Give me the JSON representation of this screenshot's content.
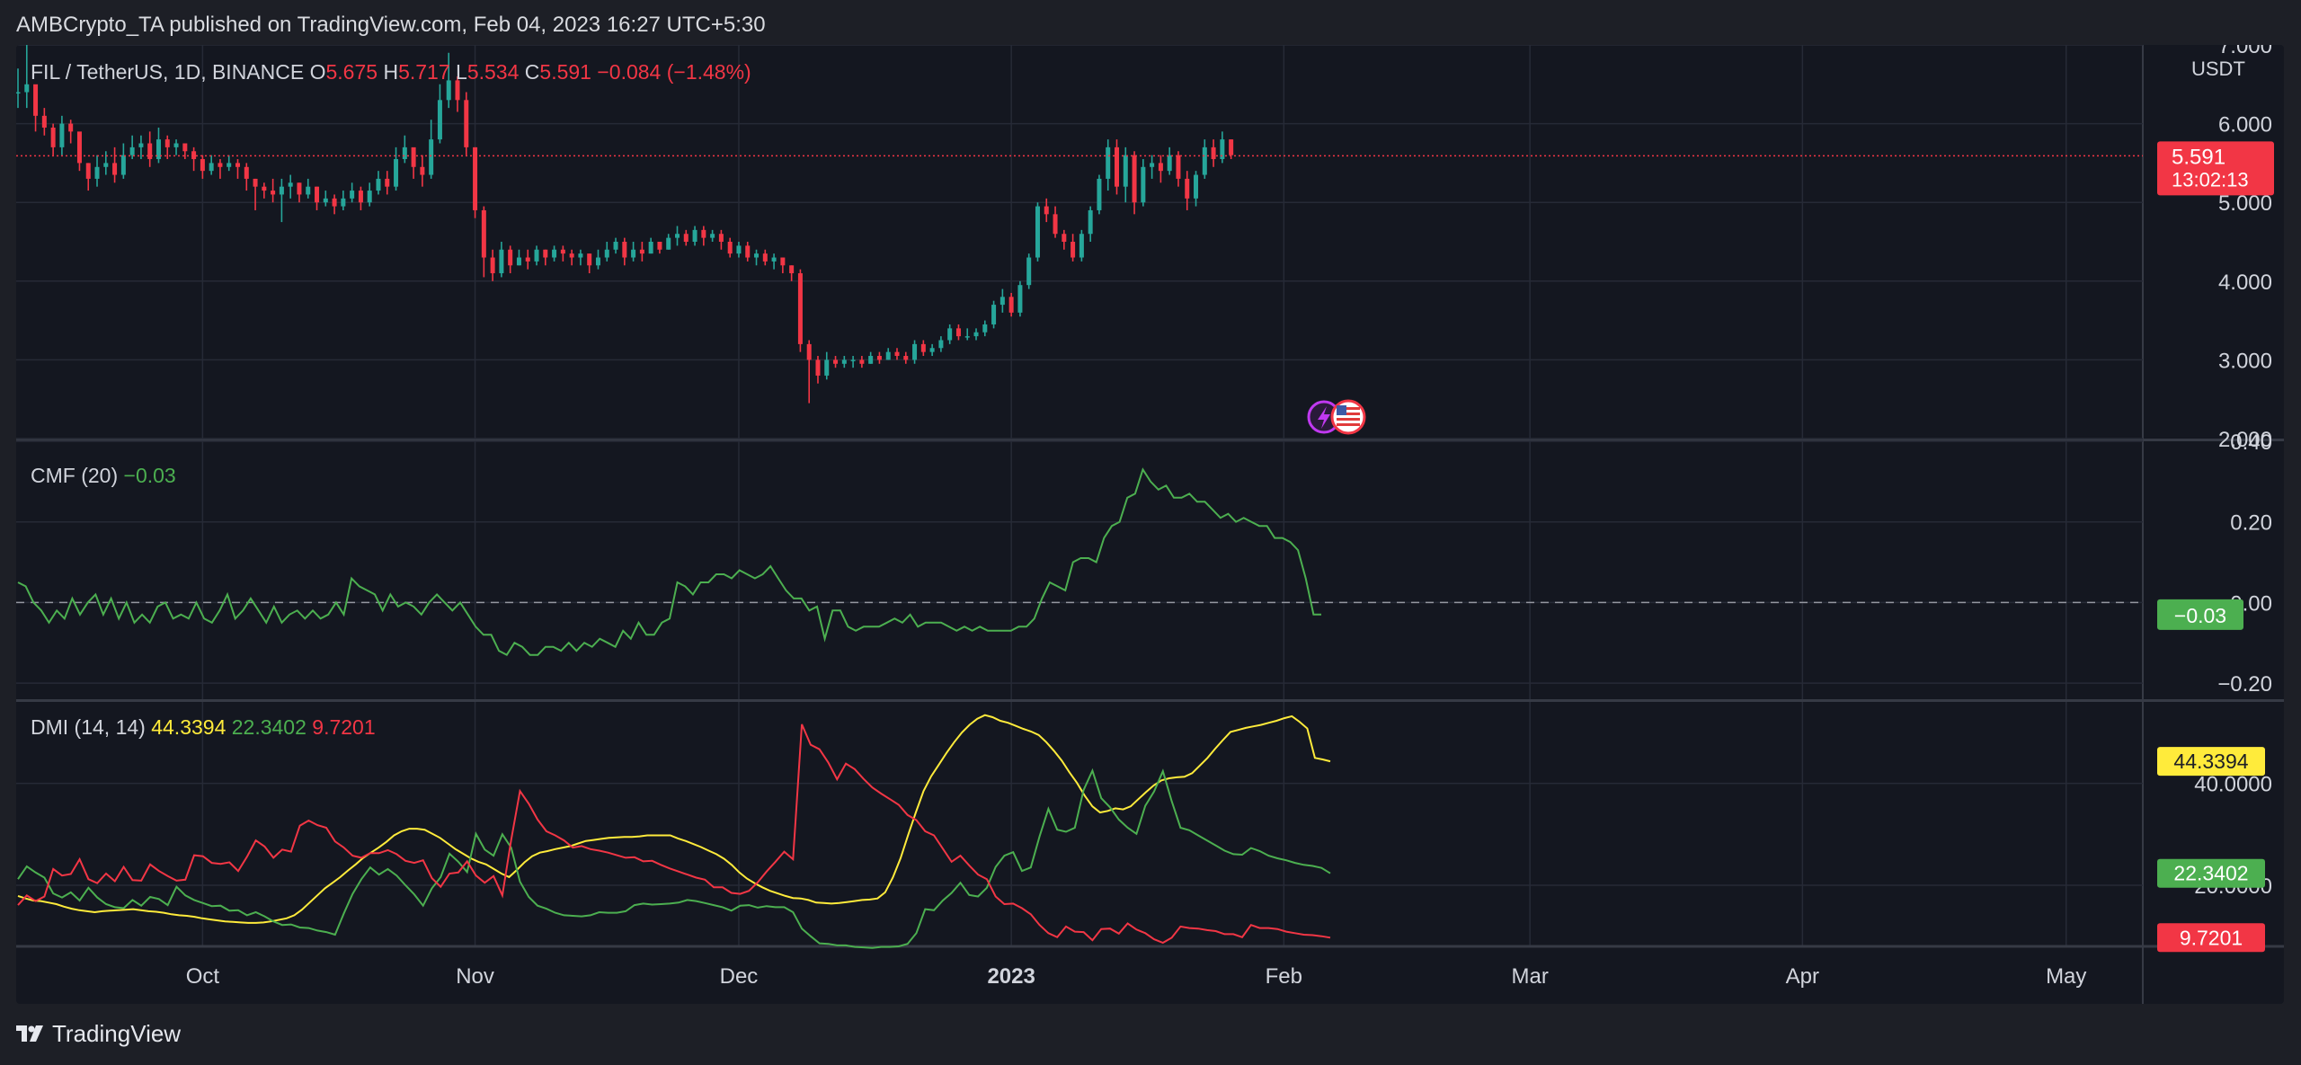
{
  "header": {
    "publisher": "AMBCrypto_TA published on TradingView.com, Feb 04, 2023 16:27 UTC+5:30"
  },
  "footer": {
    "brand": "TradingView"
  },
  "colors": {
    "up": "#26a69a",
    "down": "#f23645",
    "cmf": "#4caf50",
    "dmi_adx": "#ffeb3b",
    "dmi_plus": "#4caf50",
    "dmi_minus": "#f23645"
  },
  "chart_data": [
    {
      "type": "candlestick",
      "title": "FIL / TetherUS, 1D, BINANCE",
      "ohlc_label": {
        "o_key": "O",
        "o": "5.675",
        "h_key": "H",
        "h": "5.717",
        "l_key": "L",
        "l": "5.534",
        "c_key": "C",
        "c": "5.591",
        "change": "−0.084 (−1.48%)"
      },
      "unit": "USDT",
      "ylim": [
        2.0,
        7.0
      ],
      "y_ticks": [
        "7.000",
        "6.000",
        "5.000",
        "4.000",
        "3.000",
        "2.000"
      ],
      "last_price": "5.591",
      "countdown": "13:02:13",
      "x_labels": [
        "Oct",
        "Nov",
        "Dec",
        "2023",
        "Feb",
        "Mar",
        "Apr",
        "May"
      ],
      "x_label_dates": [
        "2022-10-01",
        "2022-11-01",
        "2022-12-01",
        "2023-01-01",
        "2023-02-01",
        "2023-03-01",
        "2023-04-01",
        "2023-05-01"
      ],
      "x_start_date": "2022-09-10",
      "close": [
        6.4,
        6.5,
        6.1,
        5.95,
        5.7,
        6.0,
        5.9,
        5.5,
        5.3,
        5.45,
        5.5,
        5.35,
        5.6,
        5.7,
        5.75,
        5.55,
        5.8,
        5.7,
        5.75,
        5.65,
        5.55,
        5.4,
        5.5,
        5.45,
        5.5,
        5.45,
        5.3,
        5.2,
        5.15,
        5.1,
        5.2,
        5.25,
        5.1,
        5.2,
        5.0,
        5.05,
        4.95,
        5.05,
        5.15,
        5.0,
        5.15,
        5.3,
        5.2,
        5.55,
        5.7,
        5.45,
        5.35,
        5.8,
        6.3,
        6.55,
        6.3,
        5.7,
        4.9,
        4.3,
        4.1,
        4.4,
        4.2,
        4.3,
        4.25,
        4.4,
        4.3,
        4.4,
        4.35,
        4.3,
        4.35,
        4.2,
        4.3,
        4.4,
        4.5,
        4.3,
        4.4,
        4.35,
        4.5,
        4.4,
        4.55,
        4.6,
        4.5,
        4.65,
        4.55,
        4.6,
        4.5,
        4.35,
        4.45,
        4.3,
        4.35,
        4.25,
        4.3,
        4.2,
        4.1,
        3.2,
        3.0,
        2.8,
        3.0,
        2.95,
        3.0,
        3.0,
        2.95,
        3.05,
        3.0,
        3.1,
        3.05,
        3.0,
        3.2,
        3.1,
        3.15,
        3.25,
        3.4,
        3.3,
        3.3,
        3.35,
        3.45,
        3.7,
        3.8,
        3.6,
        3.95,
        4.3,
        4.95,
        4.85,
        4.6,
        4.5,
        4.3,
        4.6,
        4.9,
        5.3,
        5.7,
        5.2,
        5.6,
        5.0,
        5.45,
        5.5,
        5.4,
        5.6,
        5.3,
        5.05,
        5.35,
        5.7,
        5.55,
        5.8,
        5.6
      ],
      "high": [
        6.7,
        7.0,
        6.4,
        6.2,
        6.0,
        6.1,
        6.05,
        5.85,
        5.5,
        5.6,
        5.65,
        5.7,
        5.75,
        5.85,
        5.85,
        5.9,
        5.95,
        5.85,
        5.8,
        5.75,
        5.7,
        5.6,
        5.6,
        5.55,
        5.6,
        5.55,
        5.5,
        5.3,
        5.25,
        5.3,
        5.3,
        5.35,
        5.25,
        5.3,
        5.2,
        5.15,
        5.1,
        5.15,
        5.25,
        5.2,
        5.25,
        5.4,
        5.4,
        5.7,
        5.85,
        5.65,
        5.6,
        6.05,
        6.5,
        6.9,
        6.6,
        6.4,
        5.7,
        4.95,
        4.4,
        4.5,
        4.45,
        4.4,
        4.4,
        4.45,
        4.4,
        4.45,
        4.45,
        4.4,
        4.4,
        4.35,
        4.4,
        4.5,
        4.55,
        4.55,
        4.5,
        4.5,
        4.55,
        4.5,
        4.6,
        4.7,
        4.65,
        4.7,
        4.7,
        4.65,
        4.65,
        4.55,
        4.5,
        4.5,
        4.4,
        4.4,
        4.35,
        4.3,
        4.2,
        4.15,
        3.25,
        3.05,
        3.1,
        3.05,
        3.05,
        3.05,
        3.05,
        3.1,
        3.1,
        3.15,
        3.15,
        3.1,
        3.25,
        3.25,
        3.2,
        3.3,
        3.45,
        3.45,
        3.4,
        3.4,
        3.5,
        3.75,
        3.9,
        3.85,
        4.0,
        4.35,
        5.0,
        5.05,
        4.95,
        4.65,
        4.6,
        4.65,
        4.95,
        5.35,
        5.8,
        5.8,
        5.7,
        5.65,
        5.55,
        5.6,
        5.6,
        5.7,
        5.65,
        5.4,
        5.4,
        5.8,
        5.8,
        5.9,
        5.8
      ],
      "low": [
        6.2,
        6.2,
        5.9,
        5.85,
        5.6,
        5.6,
        5.75,
        5.4,
        5.15,
        5.2,
        5.35,
        5.25,
        5.3,
        5.55,
        5.55,
        5.45,
        5.5,
        5.55,
        5.6,
        5.55,
        5.4,
        5.3,
        5.35,
        5.3,
        5.4,
        5.3,
        5.15,
        4.9,
        5.05,
        5.0,
        4.75,
        5.05,
        5.0,
        5.05,
        4.9,
        4.95,
        4.85,
        4.9,
        5.0,
        4.9,
        4.95,
        5.1,
        5.1,
        5.15,
        5.5,
        5.3,
        5.2,
        5.3,
        5.75,
        6.2,
        6.15,
        5.6,
        4.8,
        4.05,
        4.0,
        4.05,
        4.1,
        4.2,
        4.15,
        4.2,
        4.2,
        4.25,
        4.25,
        4.2,
        4.2,
        4.1,
        4.15,
        4.25,
        4.35,
        4.2,
        4.25,
        4.25,
        4.35,
        4.35,
        4.4,
        4.45,
        4.45,
        4.45,
        4.45,
        4.5,
        4.4,
        4.3,
        4.3,
        4.25,
        4.2,
        4.2,
        4.15,
        4.1,
        4.0,
        3.1,
        2.45,
        2.7,
        2.75,
        2.9,
        2.9,
        2.9,
        2.9,
        2.95,
        2.95,
        3.0,
        3.0,
        2.95,
        2.95,
        3.05,
        3.05,
        3.1,
        3.2,
        3.25,
        3.25,
        3.25,
        3.3,
        3.4,
        3.6,
        3.55,
        3.55,
        3.9,
        4.25,
        4.75,
        4.55,
        4.4,
        4.25,
        4.25,
        4.5,
        4.85,
        5.15,
        5.1,
        5.0,
        4.85,
        4.95,
        5.3,
        5.25,
        5.35,
        5.2,
        4.9,
        4.95,
        5.3,
        5.45,
        5.5,
        5.55
      ]
    },
    {
      "type": "line",
      "title": "CMF (20)",
      "last_value": "−0.03",
      "ylim": [
        -0.24,
        0.4
      ],
      "y_ticks": [
        "0.40",
        "0.20",
        "0.00",
        "−0.20"
      ],
      "zero_line": true,
      "series": [
        {
          "name": "CMF (20)",
          "values": [
            0.05,
            0.04,
            -0.0,
            -0.02,
            -0.05,
            -0.02,
            -0.04,
            0.01,
            -0.03,
            -0.0,
            0.02,
            -0.03,
            0.01,
            -0.04,
            -0.0,
            -0.05,
            -0.03,
            -0.05,
            -0.01,
            -0.0,
            -0.04,
            -0.03,
            -0.04,
            -0.0,
            -0.04,
            -0.05,
            -0.02,
            0.02,
            -0.04,
            -0.02,
            0.01,
            -0.02,
            -0.05,
            -0.01,
            -0.05,
            -0.03,
            -0.02,
            -0.04,
            -0.02,
            -0.04,
            -0.03,
            0.0,
            -0.03,
            0.06,
            0.04,
            0.03,
            0.02,
            -0.02,
            0.02,
            -0.01,
            0.0,
            -0.01,
            -0.03,
            -0.0,
            0.02,
            0.0,
            -0.02,
            0.0,
            -0.03,
            -0.06,
            -0.08,
            -0.08,
            -0.12,
            -0.13,
            -0.1,
            -0.11,
            -0.13,
            -0.13,
            -0.11,
            -0.11,
            -0.12,
            -0.1,
            -0.12,
            -0.1,
            -0.11,
            -0.09,
            -0.1,
            -0.11,
            -0.07,
            -0.09,
            -0.05,
            -0.08,
            -0.08,
            -0.05,
            -0.04,
            0.05,
            0.04,
            0.02,
            0.05,
            0.05,
            0.07,
            0.07,
            0.06,
            0.08,
            0.07,
            0.06,
            0.07,
            0.09,
            0.06,
            0.03,
            0.01,
            0.01,
            -0.02,
            -0.01,
            -0.09,
            -0.02,
            -0.02,
            -0.06,
            -0.07,
            -0.06,
            -0.06,
            -0.06,
            -0.05,
            -0.04,
            -0.05,
            -0.03,
            -0.06,
            -0.05,
            -0.05,
            -0.05,
            -0.06,
            -0.07,
            -0.06,
            -0.07,
            -0.06,
            -0.07,
            -0.07,
            -0.07,
            -0.07,
            -0.06,
            -0.06,
            -0.04,
            0.01,
            0.05,
            0.04,
            0.03,
            0.1,
            0.11,
            0.11,
            0.1,
            0.16,
            0.19,
            0.2,
            0.26,
            0.27,
            0.33,
            0.3,
            0.28,
            0.29,
            0.26,
            0.26,
            0.27,
            0.25,
            0.25,
            0.23,
            0.21,
            0.22,
            0.2,
            0.21,
            0.2,
            0.19,
            0.19,
            0.16,
            0.16,
            0.15,
            0.13,
            0.06,
            -0.03,
            -0.03
          ]
        }
      ]
    },
    {
      "type": "line",
      "title": "DMI (14, 14)",
      "ylim": [
        8.0,
        56.0
      ],
      "y_ticks": [
        "40.0000",
        "20.0000"
      ],
      "series": [
        {
          "name": "ADX",
          "last": "44.3394",
          "values": [
            17.9,
            17.4,
            17.0,
            16.9,
            16.6,
            16.3,
            15.8,
            15.4,
            15.1,
            14.9,
            14.7,
            14.9,
            15.0,
            15.1,
            15.2,
            15.3,
            15.1,
            14.9,
            14.8,
            14.6,
            14.3,
            14.1,
            14.0,
            13.8,
            13.5,
            13.3,
            13.1,
            12.9,
            12.8,
            12.7,
            12.6,
            12.6,
            12.7,
            12.9,
            13.2,
            13.5,
            14.1,
            15.2,
            16.6,
            18.0,
            19.4,
            20.5,
            21.6,
            22.9,
            24.1,
            25.4,
            26.4,
            27.4,
            28.5,
            29.8,
            30.6,
            31.1,
            31.1,
            30.9,
            30.1,
            29.3,
            28.2,
            27.1,
            26.2,
            25.3,
            24.6,
            24.1,
            23.2,
            22.3,
            21.6,
            23.0,
            24.5,
            25.7,
            26.4,
            26.7,
            27.1,
            27.4,
            27.7,
            28.2,
            28.7,
            28.9,
            29.1,
            29.3,
            29.4,
            29.5,
            29.5,
            29.6,
            29.8,
            29.8,
            29.8,
            29.8,
            29.2,
            28.7,
            28.1,
            27.5,
            26.8,
            26.1,
            25.2,
            24.0,
            22.5,
            21.3,
            20.4,
            19.6,
            18.9,
            18.4,
            17.9,
            17.5,
            17.4,
            17.1,
            16.6,
            16.5,
            16.4,
            16.5,
            16.7,
            16.9,
            17.1,
            17.2,
            17.4,
            18.6,
            21.5,
            25.3,
            29.9,
            34.3,
            38.5,
            41.4,
            43.7,
            46.0,
            48.1,
            50.0,
            51.5,
            52.7,
            53.4,
            53.0,
            52.3,
            51.9,
            51.3,
            50.7,
            50.2,
            49.5,
            48.1,
            46.4,
            44.5,
            42.2,
            40.1,
            37.6,
            35.5,
            34.3,
            34.6,
            35.1,
            34.9,
            35.5,
            36.9,
            38.3,
            39.6,
            40.6,
            41.0,
            41.2,
            41.3,
            42.0,
            43.5,
            45.0,
            46.8,
            48.5,
            50.1,
            50.5,
            50.9,
            51.2,
            51.5,
            51.9,
            52.3,
            52.8,
            53.2,
            52.1,
            50.8,
            45.0,
            44.7,
            44.3394
          ]
        },
        {
          "name": "+DI",
          "last": "22.3402",
          "values": [
            21.2,
            23.7,
            22.5,
            21.5,
            18.4,
            17.6,
            18.6,
            17.0,
            19.5,
            17.6,
            16.3,
            15.7,
            15.5,
            17.1,
            16.0,
            17.7,
            17.3,
            16.1,
            19.7,
            18.0,
            17.1,
            16.5,
            15.9,
            16.0,
            15.0,
            15.1,
            14.1,
            14.7,
            13.9,
            12.9,
            12.2,
            12.3,
            11.7,
            11.6,
            11.1,
            10.8,
            10.3,
            14.5,
            18.3,
            21.2,
            23.5,
            22.1,
            23.2,
            21.9,
            20.0,
            18.2,
            16.0,
            19.4,
            21.6,
            26.2,
            24.6,
            22.6,
            30.1,
            27.0,
            25.8,
            30.0,
            27.4,
            20.7,
            17.7,
            16.0,
            15.4,
            14.6,
            14.1,
            14.0,
            13.9,
            14.1,
            14.7,
            14.6,
            14.6,
            14.9,
            16.1,
            16.4,
            16.2,
            16.3,
            16.4,
            16.6,
            17.1,
            16.9,
            16.5,
            16.1,
            15.7,
            15.0,
            16.0,
            16.1,
            15.6,
            15.9,
            15.7,
            15.7,
            14.7,
            11.5,
            10.0,
            8.6,
            8.5,
            8.2,
            8.2,
            7.9,
            7.8,
            7.7,
            7.9,
            7.9,
            8.0,
            8.5,
            10.6,
            15.3,
            15.1,
            17.0,
            18.5,
            20.5,
            18.1,
            17.8,
            19.5,
            23.6,
            25.8,
            26.5,
            22.8,
            23.5,
            29.6,
            35.0,
            30.9,
            30.5,
            31.3,
            38.7,
            42.5,
            37.1,
            35.3,
            32.9,
            31.3,
            30.1,
            35.6,
            38.4,
            42.4,
            36.5,
            31.3,
            30.8,
            29.8,
            28.8,
            27.8,
            26.8,
            26.1,
            26.0,
            27.3,
            26.7,
            25.8,
            25.3,
            24.9,
            24.4,
            24.0,
            23.8,
            23.4,
            22.3402
          ]
        },
        {
          "name": "−DI",
          "last": "9.7201",
          "values": [
            16.1,
            18.0,
            16.9,
            17.8,
            23.2,
            21.9,
            22.2,
            25.1,
            21.2,
            20.4,
            22.3,
            20.8,
            23.6,
            21.0,
            20.9,
            24.1,
            22.8,
            21.8,
            20.9,
            21.1,
            25.9,
            25.7,
            24.4,
            24.2,
            24.5,
            22.8,
            25.6,
            28.8,
            27.6,
            25.4,
            27.0,
            26.6,
            31.7,
            32.7,
            31.8,
            31.3,
            28.6,
            27.4,
            25.8,
            25.4,
            26.3,
            26.3,
            26.9,
            26.1,
            24.8,
            24.4,
            24.9,
            21.4,
            19.7,
            22.3,
            22.5,
            24.7,
            21.9,
            20.5,
            21.8,
            18.0,
            28.9,
            38.5,
            36.0,
            32.9,
            30.6,
            29.8,
            28.8,
            27.4,
            27.7,
            27.1,
            26.8,
            26.4,
            25.9,
            25.4,
            25.5,
            24.7,
            24.8,
            24.0,
            23.3,
            22.7,
            22.1,
            21.5,
            21.1,
            19.6,
            19.6,
            18.5,
            18.3,
            18.9,
            20.6,
            22.7,
            24.6,
            26.6,
            25.1,
            51.6,
            47.6,
            46.7,
            44.1,
            40.8,
            43.9,
            42.8,
            40.9,
            39.2,
            38.0,
            36.9,
            35.8,
            33.8,
            32.8,
            30.6,
            29.8,
            27.2,
            24.6,
            25.8,
            23.9,
            22.1,
            21.2,
            17.8,
            16.3,
            16.4,
            15.5,
            14.3,
            12.2,
            10.6,
            9.8,
            11.9,
            10.9,
            10.8,
            9.2,
            11.4,
            11.5,
            10.5,
            12.5,
            11.3,
            10.6,
            9.4,
            8.7,
            9.7,
            11.9,
            11.6,
            11.5,
            11.2,
            11.0,
            10.4,
            10.4,
            9.8,
            12.2,
            11.6,
            11.6,
            11.4,
            10.9,
            10.6,
            10.3,
            10.2,
            10.0,
            9.7201
          ]
        }
      ]
    }
  ]
}
